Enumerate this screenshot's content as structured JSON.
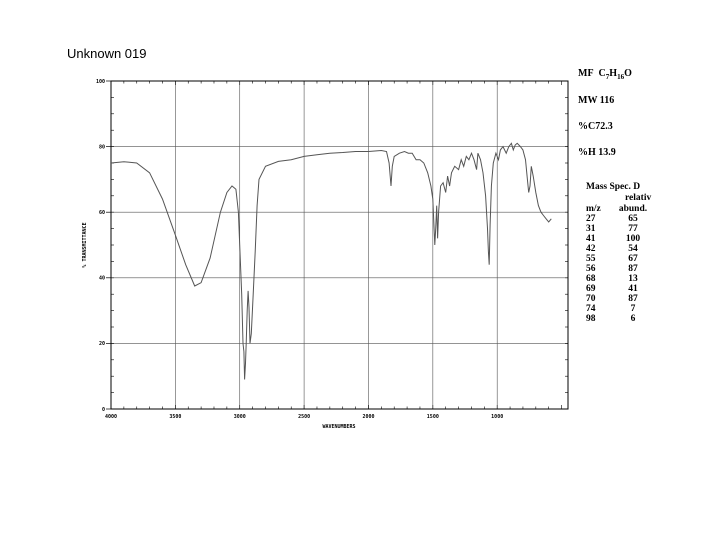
{
  "title": "Unknown 019",
  "chart_data": {
    "type": "line",
    "xlabel": "WAVENUMBERS",
    "ylabel": "% TRANSMITTANCE",
    "xlim": [
      4000,
      450
    ],
    "ylim": [
      0,
      100
    ],
    "x_ticks": [
      4000,
      3500,
      3000,
      2500,
      2000,
      1500,
      1000
    ],
    "x_tick_labels": [
      "4000",
      "3500",
      "3000",
      "2500",
      "2000",
      "1500",
      "1000"
    ],
    "y_ticks": [
      0,
      20,
      40,
      60,
      80,
      100
    ],
    "y_tick_labels": [
      "0",
      "20",
      "40",
      "60",
      "80",
      "100"
    ],
    "grid": true,
    "series": [
      {
        "name": "",
        "points": [
          [
            4000,
            75
          ],
          [
            3900,
            75.4
          ],
          [
            3800,
            75
          ],
          [
            3700,
            72
          ],
          [
            3600,
            64
          ],
          [
            3500,
            53
          ],
          [
            3420,
            44
          ],
          [
            3350,
            37.5
          ],
          [
            3300,
            38.5
          ],
          [
            3230,
            46
          ],
          [
            3150,
            60
          ],
          [
            3100,
            66
          ],
          [
            3060,
            68
          ],
          [
            3030,
            67
          ],
          [
            3010,
            60
          ],
          [
            3000,
            50
          ],
          [
            2985,
            35
          ],
          [
            2975,
            20
          ],
          [
            2968,
            17.5
          ],
          [
            2962,
            9
          ],
          [
            2955,
            14
          ],
          [
            2950,
            20
          ],
          [
            2942,
            30
          ],
          [
            2935,
            36
          ],
          [
            2928,
            31
          ],
          [
            2920,
            20
          ],
          [
            2910,
            23
          ],
          [
            2895,
            35
          ],
          [
            2880,
            48
          ],
          [
            2865,
            62
          ],
          [
            2850,
            70
          ],
          [
            2800,
            74
          ],
          [
            2700,
            75.5
          ],
          [
            2600,
            76
          ],
          [
            2500,
            77
          ],
          [
            2400,
            77.5
          ],
          [
            2300,
            78
          ],
          [
            2200,
            78.2
          ],
          [
            2100,
            78.5
          ],
          [
            2000,
            78.5
          ],
          [
            1900,
            78.8
          ],
          [
            1860,
            78.5
          ],
          [
            1840,
            75
          ],
          [
            1825,
            68
          ],
          [
            1815,
            74
          ],
          [
            1800,
            77
          ],
          [
            1760,
            78
          ],
          [
            1720,
            78.5
          ],
          [
            1690,
            78
          ],
          [
            1660,
            78
          ],
          [
            1630,
            76
          ],
          [
            1600,
            76
          ],
          [
            1570,
            75
          ],
          [
            1540,
            72
          ],
          [
            1515,
            68
          ],
          [
            1500,
            64
          ],
          [
            1485,
            50
          ],
          [
            1478,
            55
          ],
          [
            1470,
            62
          ],
          [
            1463,
            52
          ],
          [
            1455,
            60
          ],
          [
            1440,
            68
          ],
          [
            1420,
            69
          ],
          [
            1400,
            66
          ],
          [
            1385,
            71
          ],
          [
            1370,
            68
          ],
          [
            1355,
            72
          ],
          [
            1330,
            74
          ],
          [
            1300,
            73
          ],
          [
            1280,
            76
          ],
          [
            1260,
            74
          ],
          [
            1240,
            77
          ],
          [
            1220,
            76
          ],
          [
            1200,
            78
          ],
          [
            1180,
            76
          ],
          [
            1160,
            73
          ],
          [
            1150,
            78
          ],
          [
            1130,
            76
          ],
          [
            1110,
            72
          ],
          [
            1090,
            65
          ],
          [
            1075,
            55
          ],
          [
            1068,
            48
          ],
          [
            1062,
            44
          ],
          [
            1055,
            56
          ],
          [
            1045,
            68
          ],
          [
            1030,
            75
          ],
          [
            1010,
            78
          ],
          [
            990,
            76
          ],
          [
            975,
            79
          ],
          [
            955,
            80
          ],
          [
            930,
            78
          ],
          [
            910,
            80
          ],
          [
            890,
            81
          ],
          [
            875,
            79
          ],
          [
            860,
            80.5
          ],
          [
            845,
            81
          ],
          [
            820,
            80
          ],
          [
            800,
            79
          ],
          [
            780,
            76
          ],
          [
            765,
            70
          ],
          [
            755,
            66
          ],
          [
            745,
            68
          ],
          [
            735,
            74
          ],
          [
            720,
            71
          ],
          [
            700,
            66
          ],
          [
            680,
            62
          ],
          [
            660,
            60
          ],
          [
            640,
            59
          ],
          [
            620,
            58
          ],
          [
            600,
            57
          ],
          [
            580,
            58
          ]
        ]
      }
    ]
  },
  "info": {
    "mf_label": "MF",
    "mf_C": "C",
    "mf_C_n": "7",
    "mf_H": "H",
    "mf_H_n": "16",
    "mf_O": "O",
    "mw": "MW 116",
    "percent_c": "%C72.3",
    "percent_h": "%H 13.9"
  },
  "mass_spec": {
    "title": "Mass Spec. D",
    "subtitle": "relativ",
    "col_mz": "m/z",
    "col_abund": "abund.",
    "rows": [
      {
        "mz": "27",
        "abund": "65"
      },
      {
        "mz": "31",
        "abund": "77"
      },
      {
        "mz": "41",
        "abund": "100"
      },
      {
        "mz": "42",
        "abund": "54"
      },
      {
        "mz": "55",
        "abund": "67"
      },
      {
        "mz": "56",
        "abund": "87"
      },
      {
        "mz": "68",
        "abund": "13"
      },
      {
        "mz": "69",
        "abund": "41"
      },
      {
        "mz": "70",
        "abund": "87"
      },
      {
        "mz": "74",
        "abund": "7"
      },
      {
        "mz": "98",
        "abund": "6"
      }
    ]
  }
}
